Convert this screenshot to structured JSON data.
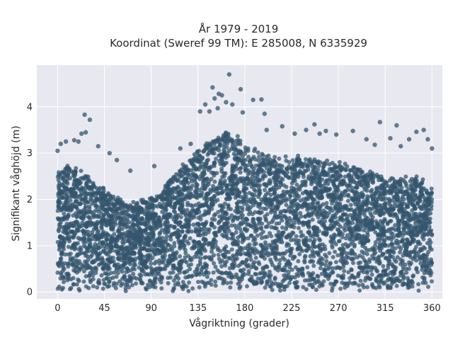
{
  "chart_data": {
    "type": "scatter",
    "title": [
      "År 1979 - 2019",
      "Koordinat (Sweref 99 TM): E 285008, N 6335929"
    ],
    "xlabel": "Vågriktning (grader)",
    "ylabel": "Signifikant våghöjd (m)",
    "xlim": [
      -20,
      370
    ],
    "ylim": [
      -0.15,
      4.9
    ],
    "xticks": [
      0,
      45,
      90,
      135,
      180,
      225,
      270,
      315,
      360
    ],
    "yticks": [
      0,
      1,
      2,
      3,
      4
    ],
    "grid": true,
    "background": "#e8e8f0",
    "marker_color": "#33566e",
    "envelope": {
      "x": [
        0,
        10,
        20,
        30,
        40,
        50,
        60,
        70,
        80,
        90,
        100,
        110,
        120,
        130,
        140,
        150,
        160,
        170,
        180,
        190,
        200,
        210,
        220,
        230,
        240,
        250,
        260,
        270,
        280,
        290,
        300,
        310,
        320,
        330,
        340,
        350,
        360
      ],
      "y": [
        2.6,
        2.75,
        2.65,
        2.45,
        2.3,
        2.1,
        2.0,
        1.9,
        1.95,
        2.0,
        2.15,
        2.5,
        2.75,
        2.95,
        3.15,
        3.35,
        3.45,
        3.4,
        3.2,
        3.05,
        2.95,
        2.95,
        2.9,
        2.9,
        2.9,
        2.85,
        2.85,
        2.8,
        2.75,
        2.65,
        2.6,
        2.5,
        2.45,
        2.45,
        2.5,
        2.4,
        2.2
      ]
    },
    "outliers": [
      {
        "x": 165,
        "y": 4.7
      },
      {
        "x": 149,
        "y": 4.42
      },
      {
        "x": 155,
        "y": 4.28
      },
      {
        "x": 176,
        "y": 4.38
      },
      {
        "x": 158,
        "y": 4.25
      },
      {
        "x": 151,
        "y": 4.18
      },
      {
        "x": 162,
        "y": 4.1
      },
      {
        "x": 196,
        "y": 4.16
      },
      {
        "x": 188,
        "y": 4.15
      },
      {
        "x": 168,
        "y": 4.05
      },
      {
        "x": 142,
        "y": 4.05
      },
      {
        "x": 154,
        "y": 3.97
      },
      {
        "x": 178,
        "y": 3.88
      },
      {
        "x": 199,
        "y": 3.85
      },
      {
        "x": 201,
        "y": 3.5
      },
      {
        "x": 146,
        "y": 3.9
      },
      {
        "x": 26,
        "y": 3.83
      },
      {
        "x": 31,
        "y": 3.72
      },
      {
        "x": 27,
        "y": 3.45
      },
      {
        "x": 23,
        "y": 3.42
      },
      {
        "x": 39,
        "y": 3.15
      },
      {
        "x": 20,
        "y": 3.25
      },
      {
        "x": 16,
        "y": 3.28
      },
      {
        "x": 8,
        "y": 3.25
      },
      {
        "x": 3,
        "y": 3.2
      },
      {
        "x": 0,
        "y": 3.05
      },
      {
        "x": 50,
        "y": 3.0
      },
      {
        "x": 57,
        "y": 2.85
      },
      {
        "x": 70,
        "y": 2.62
      },
      {
        "x": 93,
        "y": 2.72
      },
      {
        "x": 247,
        "y": 3.62
      },
      {
        "x": 239,
        "y": 3.5
      },
      {
        "x": 216,
        "y": 3.58
      },
      {
        "x": 228,
        "y": 3.42
      },
      {
        "x": 252,
        "y": 3.42
      },
      {
        "x": 258,
        "y": 3.48
      },
      {
        "x": 268,
        "y": 3.4
      },
      {
        "x": 284,
        "y": 3.48
      },
      {
        "x": 297,
        "y": 3.3
      },
      {
        "x": 310,
        "y": 3.67
      },
      {
        "x": 326,
        "y": 3.6
      },
      {
        "x": 338,
        "y": 3.3
      },
      {
        "x": 345,
        "y": 3.46
      },
      {
        "x": 352,
        "y": 3.5
      },
      {
        "x": 356,
        "y": 3.3
      },
      {
        "x": 320,
        "y": 3.32
      },
      {
        "x": 305,
        "y": 3.18
      },
      {
        "x": 360,
        "y": 3.1
      },
      {
        "x": 330,
        "y": 3.15
      },
      {
        "x": 118,
        "y": 3.1
      },
      {
        "x": 128,
        "y": 3.2
      },
      {
        "x": 137,
        "y": 3.9
      }
    ]
  }
}
